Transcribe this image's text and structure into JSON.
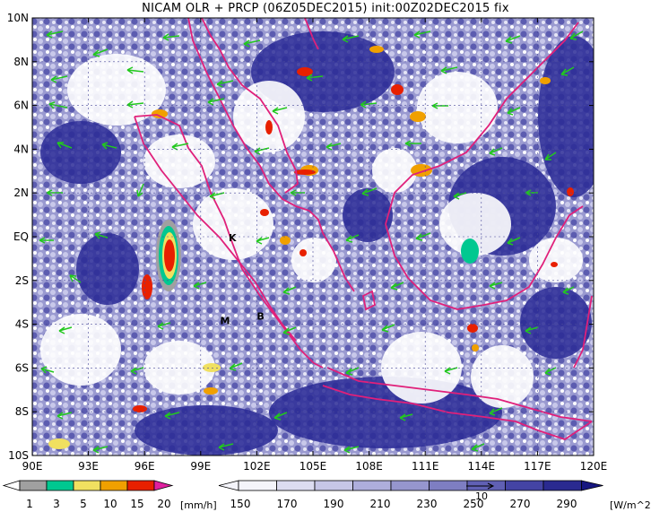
{
  "title": "NICAM OLR + PRCP (06Z05DEC2015) init:00Z02DEC2015 fix",
  "map": {
    "x_ticks": [
      "90E",
      "93E",
      "96E",
      "99E",
      "102E",
      "105E",
      "108E",
      "111E",
      "114E",
      "117E",
      "120E"
    ],
    "y_ticks": [
      "10N",
      "8N",
      "6N",
      "4N",
      "2N",
      "EQ",
      "2S",
      "4S",
      "6S",
      "8S",
      "10S"
    ],
    "lon_range": [
      90,
      120
    ],
    "lat_range": [
      -10,
      10
    ],
    "stations": [
      {
        "label": "K",
        "lon": 100.7,
        "lat": -0.2
      },
      {
        "label": "M",
        "lon": 100.3,
        "lat": -4.0
      },
      {
        "label": "B",
        "lon": 102.2,
        "lat": -3.8
      }
    ],
    "coastline_color": "#e0207a",
    "wind_vector_color": "#22c81e"
  },
  "precip_colorbar": {
    "labels": [
      "1",
      "3",
      "5",
      "10",
      "15",
      "20"
    ],
    "unit": "[mm/h]",
    "colors": [
      "#a0a0a0",
      "#00c890",
      "#f0e060",
      "#f0a000",
      "#e82000",
      "#e020a0"
    ]
  },
  "olr_colorbar": {
    "labels": [
      "150",
      "170",
      "190",
      "210",
      "230",
      "250",
      "270",
      "290"
    ],
    "unit": "[W/m^2]",
    "reference_vector": "10",
    "colors": [
      "#f4f4fa",
      "#dcdcf0",
      "#c6c6e6",
      "#aeaedc",
      "#9696ce",
      "#7e7ec2",
      "#6060b4",
      "#4444a4",
      "#2a2a90",
      "#161680"
    ]
  }
}
